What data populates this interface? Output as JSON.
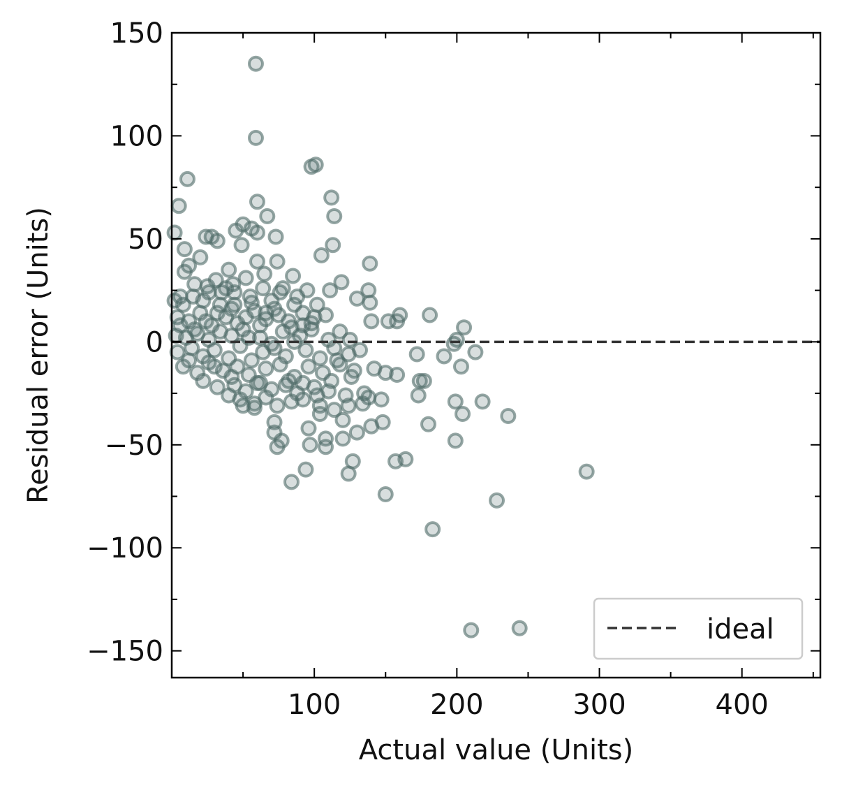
{
  "colors": {
    "point": "#4f6b68",
    "ideal_line": "#333333",
    "axes": "#000000",
    "legend_border": "#cccccc"
  },
  "chart_data": {
    "type": "scatter",
    "title": "",
    "xlabel": "Actual value (Units)",
    "ylabel": "Residual error (Units)",
    "xlim": [
      0,
      455
    ],
    "ylim": [
      -163,
      150
    ],
    "xticks": [
      100,
      200,
      300,
      400
    ],
    "xtick_labels": [
      "100",
      "200",
      "300",
      "400"
    ],
    "yticks": [
      150,
      100,
      50,
      0,
      -50,
      -100,
      -150
    ],
    "ytick_labels": [
      "150",
      "100",
      "50",
      "0",
      "−50",
      "−100",
      "−150"
    ],
    "marker": "open-circle",
    "grid": false,
    "legend": {
      "position": "lower-right",
      "entries": [
        "ideal"
      ]
    },
    "ideal_line": {
      "y": 0,
      "style": "dashed",
      "label": "ideal"
    },
    "points": [
      [
        59,
        135
      ],
      [
        59,
        99
      ],
      [
        11,
        79
      ],
      [
        5,
        66
      ],
      [
        101,
        86
      ],
      [
        98,
        85
      ],
      [
        112,
        70
      ],
      [
        60,
        68
      ],
      [
        114,
        61
      ],
      [
        67,
        61
      ],
      [
        2,
        53
      ],
      [
        50,
        57
      ],
      [
        56,
        55
      ],
      [
        45,
        54
      ],
      [
        60,
        53
      ],
      [
        24,
        51
      ],
      [
        28,
        51
      ],
      [
        32,
        49
      ],
      [
        73,
        51
      ],
      [
        113,
        47
      ],
      [
        9,
        45
      ],
      [
        49,
        47
      ],
      [
        105,
        42
      ],
      [
        20,
        41
      ],
      [
        60,
        39
      ],
      [
        139,
        38
      ],
      [
        74,
        39
      ],
      [
        12,
        37
      ],
      [
        40,
        35
      ],
      [
        9,
        34
      ],
      [
        85,
        32
      ],
      [
        25,
        27
      ],
      [
        31,
        30
      ],
      [
        43,
        28
      ],
      [
        52,
        31
      ],
      [
        65,
        33
      ],
      [
        119,
        29
      ],
      [
        111,
        25
      ],
      [
        138,
        25
      ],
      [
        2,
        20
      ],
      [
        8,
        18
      ],
      [
        15,
        22
      ],
      [
        22,
        20
      ],
      [
        35,
        24
      ],
      [
        44,
        18
      ],
      [
        55,
        22
      ],
      [
        70,
        20
      ],
      [
        88,
        22
      ],
      [
        95,
        25
      ],
      [
        102,
        18
      ],
      [
        130,
        21
      ],
      [
        139,
        19
      ],
      [
        160,
        13
      ],
      [
        181,
        13
      ],
      [
        4,
        12
      ],
      [
        12,
        10
      ],
      [
        20,
        14
      ],
      [
        28,
        8
      ],
      [
        38,
        12
      ],
      [
        46,
        9
      ],
      [
        58,
        15
      ],
      [
        66,
        11
      ],
      [
        75,
        13
      ],
      [
        84,
        7
      ],
      [
        92,
        14
      ],
      [
        108,
        13
      ],
      [
        140,
        10
      ],
      [
        152,
        10
      ],
      [
        158,
        10
      ],
      [
        205,
        7
      ],
      [
        3,
        3
      ],
      [
        10,
        2
      ],
      [
        18,
        4
      ],
      [
        26,
        1
      ],
      [
        34,
        5
      ],
      [
        42,
        3
      ],
      [
        50,
        6
      ],
      [
        62,
        2
      ],
      [
        78,
        5
      ],
      [
        90,
        3
      ],
      [
        98,
        6
      ],
      [
        110,
        1
      ],
      [
        118,
        5
      ],
      [
        125,
        1
      ],
      [
        200,
        1
      ],
      [
        198,
        -1
      ],
      [
        172,
        -6
      ],
      [
        191,
        -7
      ],
      [
        213,
        -5
      ],
      [
        4,
        -5
      ],
      [
        14,
        -3
      ],
      [
        22,
        -7
      ],
      [
        30,
        -4
      ],
      [
        40,
        -8
      ],
      [
        48,
        -2
      ],
      [
        56,
        -9
      ],
      [
        64,
        -5
      ],
      [
        72,
        -3
      ],
      [
        80,
        -7
      ],
      [
        94,
        -4
      ],
      [
        104,
        -8
      ],
      [
        114,
        -3
      ],
      [
        124,
        -6
      ],
      [
        132,
        -4
      ],
      [
        203,
        -12
      ],
      [
        8,
        -12
      ],
      [
        18,
        -15
      ],
      [
        26,
        -10
      ],
      [
        36,
        -14
      ],
      [
        46,
        -12
      ],
      [
        54,
        -16
      ],
      [
        66,
        -13
      ],
      [
        76,
        -11
      ],
      [
        86,
        -17
      ],
      [
        96,
        -12
      ],
      [
        106,
        -15
      ],
      [
        118,
        -11
      ],
      [
        128,
        -14
      ],
      [
        142,
        -13
      ],
      [
        150,
        -15
      ],
      [
        158,
        -16
      ],
      [
        174,
        -19
      ],
      [
        177,
        -19
      ],
      [
        22,
        -19
      ],
      [
        32,
        -22
      ],
      [
        44,
        -21
      ],
      [
        52,
        -24
      ],
      [
        60,
        -20
      ],
      [
        70,
        -23
      ],
      [
        80,
        -21
      ],
      [
        88,
        -25
      ],
      [
        100,
        -22
      ],
      [
        110,
        -24
      ],
      [
        122,
        -26
      ],
      [
        135,
        -25
      ],
      [
        138,
        -27
      ],
      [
        173,
        -26
      ],
      [
        40,
        -26
      ],
      [
        48,
        -28
      ],
      [
        58,
        -30
      ],
      [
        66,
        -27
      ],
      [
        84,
        -29
      ],
      [
        92,
        -28
      ],
      [
        104,
        -31
      ],
      [
        114,
        -33
      ],
      [
        124,
        -31
      ],
      [
        134,
        -30
      ],
      [
        147,
        -28
      ],
      [
        199,
        -29
      ],
      [
        218,
        -29
      ],
      [
        50,
        -31
      ],
      [
        58,
        -32
      ],
      [
        74,
        -31
      ],
      [
        104,
        -35
      ],
      [
        120,
        -38
      ],
      [
        130,
        -44
      ],
      [
        204,
        -35
      ],
      [
        236,
        -36
      ],
      [
        140,
        -41
      ],
      [
        148,
        -39
      ],
      [
        180,
        -40
      ],
      [
        72,
        -39
      ],
      [
        72,
        -44
      ],
      [
        96,
        -42
      ],
      [
        120,
        -47
      ],
      [
        108,
        -47
      ],
      [
        77,
        -48
      ],
      [
        74,
        -51
      ],
      [
        97,
        -50
      ],
      [
        108,
        -51
      ],
      [
        199,
        -48
      ],
      [
        127,
        -58
      ],
      [
        157,
        -58
      ],
      [
        164,
        -57
      ],
      [
        94,
        -62
      ],
      [
        84,
        -68
      ],
      [
        124,
        -64
      ],
      [
        150,
        -74
      ],
      [
        228,
        -77
      ],
      [
        291,
        -63
      ],
      [
        183,
        -91
      ],
      [
        210,
        -140
      ],
      [
        244,
        -139
      ],
      [
        6,
        8
      ],
      [
        16,
        6
      ],
      [
        24,
        10
      ],
      [
        32,
        14
      ],
      [
        42,
        16
      ],
      [
        52,
        12
      ],
      [
        62,
        8
      ],
      [
        72,
        16
      ],
      [
        82,
        10
      ],
      [
        92,
        8
      ],
      [
        100,
        12
      ],
      [
        34,
        18
      ],
      [
        44,
        24
      ],
      [
        56,
        19
      ],
      [
        66,
        14
      ],
      [
        76,
        24
      ],
      [
        86,
        18
      ],
      [
        98,
        9
      ],
      [
        26,
        24
      ],
      [
        38,
        26
      ],
      [
        12,
        -9
      ],
      [
        30,
        -12
      ],
      [
        42,
        -17
      ],
      [
        62,
        -20
      ],
      [
        82,
        -19
      ],
      [
        92,
        -20
      ],
      [
        102,
        -26
      ],
      [
        112,
        -19
      ],
      [
        126,
        -17
      ],
      [
        6,
        22
      ],
      [
        16,
        28
      ],
      [
        64,
        26
      ],
      [
        78,
        26
      ],
      [
        54,
        2
      ],
      [
        70,
        -1
      ],
      [
        86,
        0
      ],
      [
        116,
        -9
      ]
    ]
  }
}
